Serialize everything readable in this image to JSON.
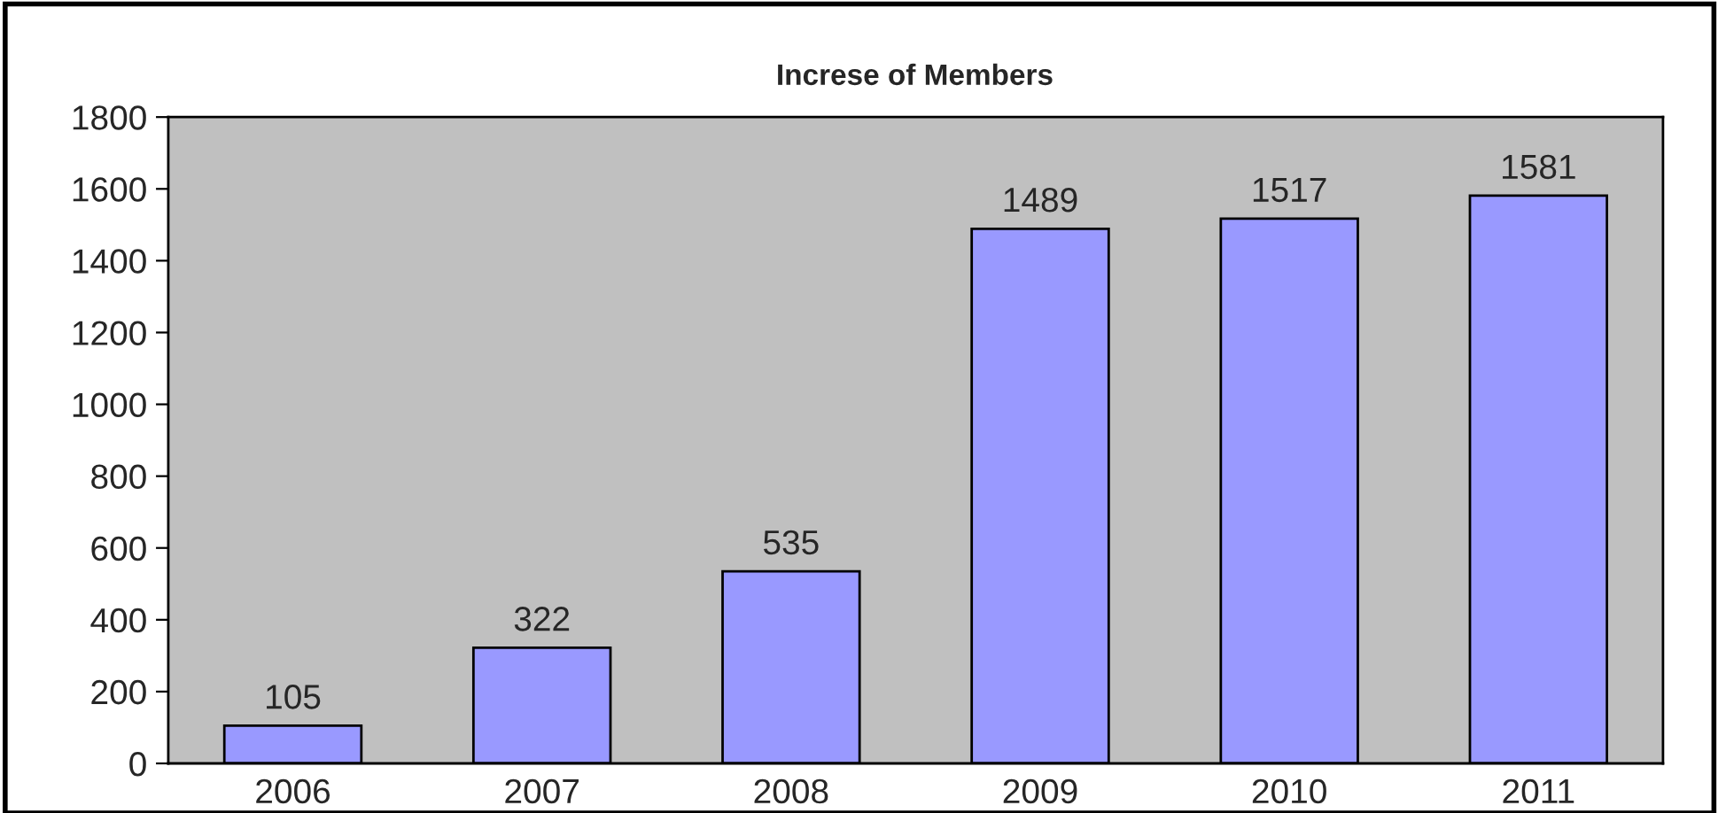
{
  "chart_data": {
    "type": "bar",
    "title": "Increse of Members",
    "categories": [
      "2006",
      "2007",
      "2008",
      "2009",
      "2010",
      "2011"
    ],
    "values": [
      105,
      322,
      535,
      1489,
      1517,
      1581
    ],
    "color": "#9999ff",
    "ylim": [
      0,
      1800
    ],
    "yticks": [
      0,
      200,
      400,
      600,
      800,
      1000,
      1200,
      1400,
      1600,
      1800
    ],
    "data_labels": true,
    "grid": false,
    "legend": false
  }
}
